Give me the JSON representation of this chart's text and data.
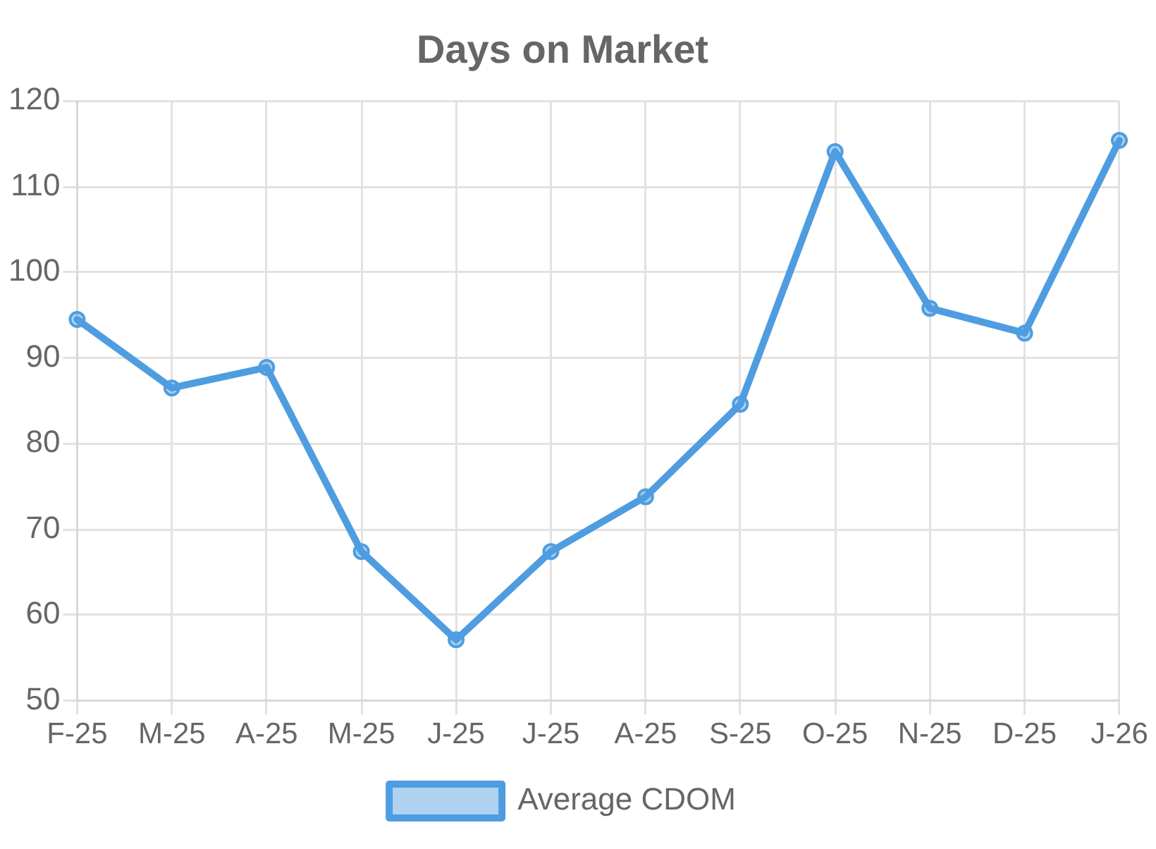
{
  "chart_data": {
    "type": "line",
    "title": "Days on Market",
    "categories": [
      "F-25",
      "M-25",
      "A-25",
      "M-25",
      "J-25",
      "J-25",
      "A-25",
      "S-25",
      "O-25",
      "N-25",
      "D-25",
      "J-26"
    ],
    "series": [
      {
        "name": "Average CDOM",
        "color": "#4f9de0",
        "values": [
          94.5,
          86.5,
          88.9,
          67.4,
          57.1,
          67.4,
          73.8,
          84.6,
          114.1,
          95.8,
          92.9,
          115.4
        ]
      }
    ],
    "ylim": [
      50,
      120
    ],
    "yticks": [
      50,
      60,
      70,
      80,
      90,
      100,
      110,
      120
    ],
    "grid": true,
    "legend": "bottom",
    "marker": "circle",
    "line_style": "solid"
  }
}
